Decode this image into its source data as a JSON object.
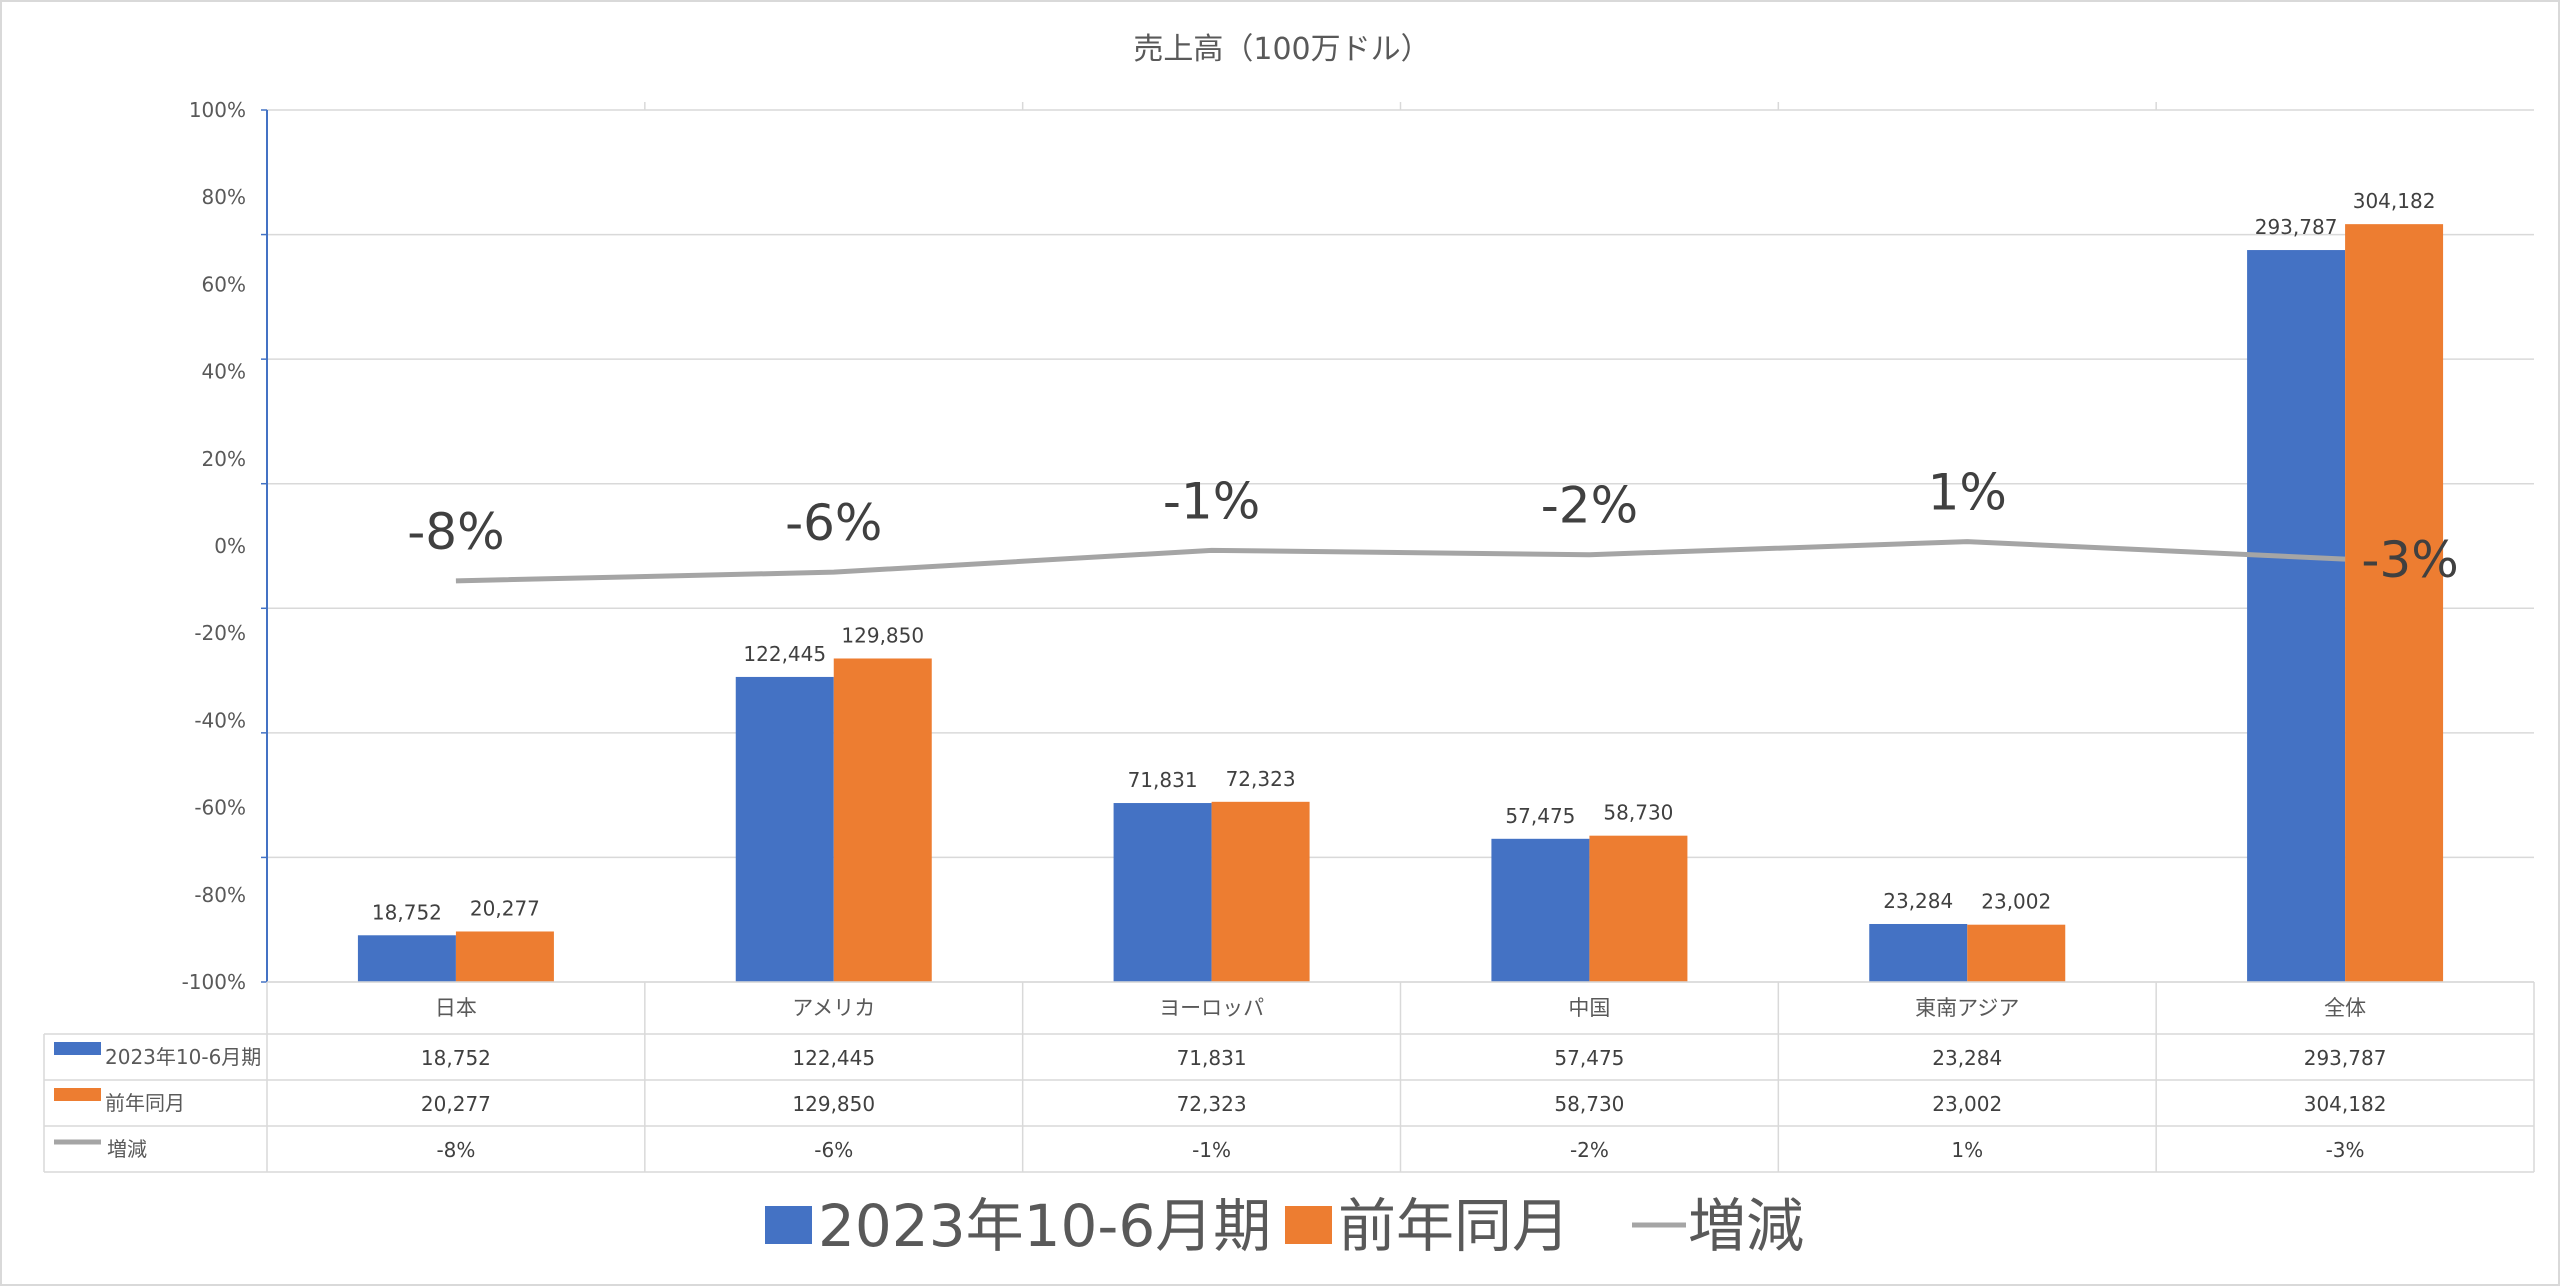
{
  "chart_data": {
    "type": "bar",
    "title": "売上高（100万ドル）",
    "categories": [
      "日本",
      "アメリカ",
      "ヨーロッパ",
      "中国",
      "東南アジア",
      "全体"
    ],
    "series": [
      {
        "name": "2023年10-6月期",
        "type": "bar",
        "color": "#4472c4",
        "values": [
          18752,
          122445,
          71831,
          57475,
          23284,
          293787
        ],
        "labels": [
          "18,752",
          "122,445",
          "71,831",
          "57,475",
          "23,284",
          "293,787"
        ]
      },
      {
        "name": "前年同月",
        "type": "bar",
        "color": "#ed7d31",
        "values": [
          20277,
          129850,
          72323,
          58730,
          23002,
          304182
        ],
        "labels": [
          "20,277",
          "129,850",
          "72,323",
          "58,730",
          "23,002",
          "304,182"
        ]
      },
      {
        "name": "増減",
        "type": "line",
        "color": "#a5a5a5",
        "values": [
          -8,
          -6,
          -1,
          -2,
          1,
          -3
        ],
        "labels": [
          "-8%",
          "-6%",
          "-1%",
          "-2%",
          "1%",
          "-3%"
        ]
      }
    ],
    "y_axis": {
      "ticks": [
        "100%",
        "80%",
        "60%",
        "40%",
        "20%",
        "0%",
        "-20%",
        "-40%",
        "-60%",
        "-80%",
        "-100%"
      ],
      "ylim": [
        -100,
        100
      ]
    },
    "bar_axis_max": 350000,
    "grid": true,
    "data_table": true,
    "legend_position": "bottom"
  }
}
